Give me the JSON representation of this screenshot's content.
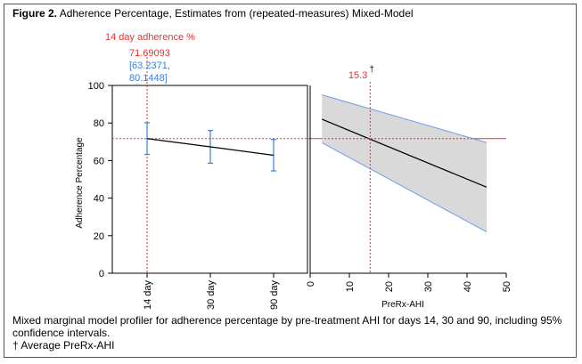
{
  "figure": {
    "label": "Figure 2.",
    "title": "Adherence Percentage, Estimates from (repeated-measures) Mixed-Model"
  },
  "caption": {
    "line1": "Mixed marginal model profiler for adherence percentage by pre-treatment AHI for days 14, 30 and 90, including 95%",
    "line2": "confidence intervals.",
    "line3": "† Average PreRx-AHI"
  },
  "readout": {
    "label": "14 day adherence %",
    "value": "71.69093",
    "ci_low": "[63.2371,",
    "ci_high": "80.1448]",
    "ahi_value": "15.3",
    "ahi_mark": "†"
  },
  "colors": {
    "readout": "#e8322f",
    "ci": "#3b7fd8",
    "crosshair": "#e8322f",
    "band_fill": "#d9d9d9",
    "band_edge": "#6f9ce8",
    "line": "#000000"
  },
  "chart_data": [
    {
      "type": "line",
      "title": "",
      "ylabel": "Adherence Percentage",
      "xlabel": "",
      "categories": [
        "14 day",
        "30 day",
        "90 day"
      ],
      "ylim": [
        0,
        100
      ],
      "yticks": [
        "0",
        "20",
        "40",
        "60",
        "80",
        "100"
      ],
      "series": [
        {
          "values": [
            71.69,
            67.3,
            62.8
          ],
          "ci_low": [
            63.24,
            58.6,
            54.5
          ],
          "ci_high": [
            80.14,
            76.0,
            71.2
          ]
        }
      ],
      "crosshair": {
        "category": "14 day",
        "y": 71.69
      },
      "grid": false
    },
    {
      "type": "line",
      "title": "",
      "xlabel": "PreRx-AHI",
      "ylabel": "",
      "xlim": [
        0,
        50
      ],
      "ylim": [
        0,
        100
      ],
      "xticks": [
        "0",
        "10",
        "20",
        "30",
        "40",
        "50"
      ],
      "x": [
        3,
        45
      ],
      "series": [
        {
          "values": [
            82.0,
            45.8
          ],
          "ci_low": [
            69.5,
            22.0
          ],
          "ci_high": [
            95.0,
            69.6
          ]
        }
      ],
      "crosshair": {
        "x": 15.3,
        "y": 71.69
      },
      "grid": false
    }
  ]
}
